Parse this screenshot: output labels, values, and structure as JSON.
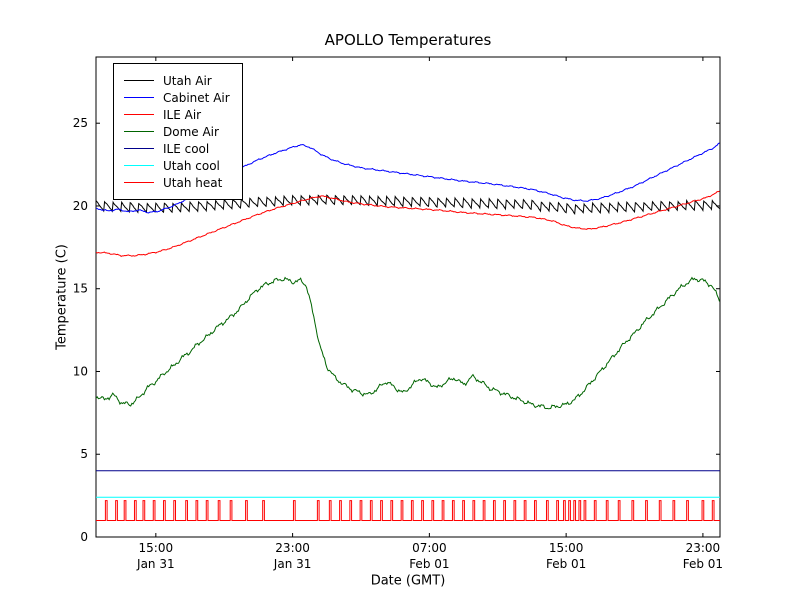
{
  "chart_data": {
    "type": "line",
    "title": "APOLLO Temperatures",
    "xlabel": "Date (GMT)",
    "ylabel": "Temperature (C)",
    "xlim": [
      11.5,
      48
    ],
    "ylim": [
      0,
      29
    ],
    "x_unit": "hours since Jan 31 00:00 GMT",
    "grid": false,
    "legend_position": "upper left",
    "y_ticks": [
      0,
      5,
      10,
      15,
      20,
      25
    ],
    "x_ticks": [
      {
        "x": 15,
        "label": "15:00",
        "sublabel": "Jan 31"
      },
      {
        "x": 23,
        "label": "23:00",
        "sublabel": "Jan 31"
      },
      {
        "x": 31,
        "label": "07:00",
        "sublabel": "Feb 01"
      },
      {
        "x": 39,
        "label": "15:00",
        "sublabel": "Feb 01"
      },
      {
        "x": 47,
        "label": "23:00",
        "sublabel": "Feb 01"
      }
    ],
    "series": [
      {
        "name": "Utah Air",
        "color": "#000000",
        "style": "sawtooth",
        "noise": 0.04,
        "sawtooth": {
          "period": 0.5,
          "amplitude": 0.6
        },
        "base_points": [
          [
            11.5,
            19.7
          ],
          [
            13.0,
            19.6
          ],
          [
            15.0,
            19.55
          ],
          [
            17.0,
            19.6
          ],
          [
            19.0,
            19.75
          ],
          [
            21.0,
            19.9
          ],
          [
            23.0,
            20.0
          ],
          [
            25.0,
            20.05
          ],
          [
            27.0,
            20.0
          ],
          [
            29.0,
            19.95
          ],
          [
            31.0,
            19.9
          ],
          [
            33.0,
            19.85
          ],
          [
            35.0,
            19.8
          ],
          [
            37.0,
            19.75
          ],
          [
            38.5,
            19.65
          ],
          [
            39.5,
            19.55
          ],
          [
            40.5,
            19.6
          ],
          [
            42.0,
            19.65
          ],
          [
            44.0,
            19.7
          ],
          [
            46.0,
            19.75
          ],
          [
            48.0,
            19.8
          ]
        ]
      },
      {
        "name": "Cabinet Air",
        "color": "#0000ff",
        "style": "line",
        "noise": 0.05,
        "points": [
          [
            11.5,
            19.85
          ],
          [
            12.2,
            19.7
          ],
          [
            12.8,
            19.8
          ],
          [
            13.4,
            19.65
          ],
          [
            14.0,
            19.75
          ],
          [
            14.6,
            19.6
          ],
          [
            15.2,
            19.7
          ],
          [
            16.0,
            20.0
          ],
          [
            17.0,
            20.5
          ],
          [
            18.0,
            21.1
          ],
          [
            19.0,
            21.7
          ],
          [
            20.0,
            22.3
          ],
          [
            21.0,
            22.8
          ],
          [
            22.0,
            23.2
          ],
          [
            23.0,
            23.55
          ],
          [
            23.5,
            23.7
          ],
          [
            24.0,
            23.55
          ],
          [
            24.7,
            23.1
          ],
          [
            25.3,
            22.8
          ],
          [
            26.0,
            22.55
          ],
          [
            27.0,
            22.3
          ],
          [
            28.5,
            22.1
          ],
          [
            30.0,
            21.9
          ],
          [
            31.5,
            21.7
          ],
          [
            33.0,
            21.5
          ],
          [
            34.5,
            21.35
          ],
          [
            36.0,
            21.15
          ],
          [
            37.0,
            21.0
          ],
          [
            38.0,
            20.75
          ],
          [
            38.8,
            20.5
          ],
          [
            39.5,
            20.35
          ],
          [
            40.2,
            20.3
          ],
          [
            41.0,
            20.45
          ],
          [
            42.0,
            20.8
          ],
          [
            43.0,
            21.2
          ],
          [
            44.0,
            21.7
          ],
          [
            45.0,
            22.2
          ],
          [
            46.0,
            22.7
          ],
          [
            47.0,
            23.2
          ],
          [
            47.6,
            23.5
          ],
          [
            48.0,
            23.8
          ]
        ]
      },
      {
        "name": "ILE Air",
        "color": "#ff0000",
        "style": "line",
        "noise": 0.05,
        "points": [
          [
            11.5,
            17.2
          ],
          [
            12.2,
            17.15
          ],
          [
            13.0,
            17.0
          ],
          [
            13.8,
            17.0
          ],
          [
            14.5,
            17.1
          ],
          [
            15.2,
            17.25
          ],
          [
            16.0,
            17.5
          ],
          [
            17.0,
            17.9
          ],
          [
            18.0,
            18.3
          ],
          [
            19.0,
            18.7
          ],
          [
            20.0,
            19.1
          ],
          [
            21.0,
            19.5
          ],
          [
            22.0,
            19.85
          ],
          [
            23.0,
            20.15
          ],
          [
            24.0,
            20.45
          ],
          [
            24.7,
            20.6
          ],
          [
            25.4,
            20.45
          ],
          [
            26.2,
            20.25
          ],
          [
            27.2,
            20.1
          ],
          [
            28.5,
            19.95
          ],
          [
            30.0,
            19.85
          ],
          [
            31.5,
            19.75
          ],
          [
            33.0,
            19.6
          ],
          [
            34.5,
            19.5
          ],
          [
            36.0,
            19.4
          ],
          [
            37.2,
            19.3
          ],
          [
            38.2,
            19.1
          ],
          [
            39.0,
            18.8
          ],
          [
            39.7,
            18.65
          ],
          [
            40.4,
            18.6
          ],
          [
            41.2,
            18.75
          ],
          [
            42.2,
            19.0
          ],
          [
            43.2,
            19.3
          ],
          [
            44.2,
            19.6
          ],
          [
            45.2,
            19.9
          ],
          [
            46.2,
            20.2
          ],
          [
            47.2,
            20.5
          ],
          [
            48.0,
            20.9
          ]
        ]
      },
      {
        "name": "Dome Air",
        "color": "#006400",
        "style": "line",
        "noise": 0.16,
        "points": [
          [
            11.5,
            8.5
          ],
          [
            12.0,
            8.3
          ],
          [
            12.5,
            8.6
          ],
          [
            13.0,
            8.1
          ],
          [
            13.5,
            8.0
          ],
          [
            14.0,
            8.4
          ],
          [
            14.5,
            9.0
          ],
          [
            15.0,
            9.4
          ],
          [
            15.5,
            9.9
          ],
          [
            16.0,
            10.3
          ],
          [
            16.5,
            10.8
          ],
          [
            17.0,
            11.2
          ],
          [
            17.5,
            11.7
          ],
          [
            18.0,
            12.1
          ],
          [
            18.5,
            12.6
          ],
          [
            19.0,
            13.0
          ],
          [
            19.5,
            13.4
          ],
          [
            20.0,
            13.9
          ],
          [
            20.5,
            14.5
          ],
          [
            21.0,
            15.0
          ],
          [
            21.5,
            15.3
          ],
          [
            22.0,
            15.5
          ],
          [
            22.5,
            15.6
          ],
          [
            23.0,
            15.4
          ],
          [
            23.5,
            15.5
          ],
          [
            23.8,
            15.2
          ],
          [
            24.2,
            13.5
          ],
          [
            24.6,
            11.5
          ],
          [
            25.0,
            10.3
          ],
          [
            25.5,
            9.6
          ],
          [
            26.0,
            9.2
          ],
          [
            26.5,
            8.9
          ],
          [
            27.0,
            8.7
          ],
          [
            27.5,
            8.6
          ],
          [
            28.0,
            9.0
          ],
          [
            28.5,
            9.4
          ],
          [
            29.0,
            9.0
          ],
          [
            29.5,
            8.7
          ],
          [
            30.0,
            9.2
          ],
          [
            30.5,
            9.6
          ],
          [
            31.0,
            9.3
          ],
          [
            31.5,
            9.0
          ],
          [
            32.0,
            9.4
          ],
          [
            32.5,
            9.6
          ],
          [
            33.0,
            9.2
          ],
          [
            33.5,
            9.7
          ],
          [
            34.0,
            9.4
          ],
          [
            34.5,
            9.0
          ],
          [
            35.0,
            8.8
          ],
          [
            35.5,
            8.6
          ],
          [
            36.0,
            8.4
          ],
          [
            36.5,
            8.2
          ],
          [
            37.0,
            8.0
          ],
          [
            37.5,
            7.9
          ],
          [
            38.0,
            7.8
          ],
          [
            38.5,
            7.9
          ],
          [
            39.0,
            8.0
          ],
          [
            39.5,
            8.3
          ],
          [
            40.0,
            8.8
          ],
          [
            40.5,
            9.4
          ],
          [
            41.0,
            10.0
          ],
          [
            41.5,
            10.6
          ],
          [
            42.0,
            11.2
          ],
          [
            42.5,
            11.8
          ],
          [
            43.0,
            12.3
          ],
          [
            43.5,
            12.9
          ],
          [
            44.0,
            13.4
          ],
          [
            44.5,
            13.9
          ],
          [
            45.0,
            14.4
          ],
          [
            45.5,
            14.9
          ],
          [
            46.0,
            15.3
          ],
          [
            46.5,
            15.6
          ],
          [
            47.0,
            15.5
          ],
          [
            47.5,
            15.2
          ],
          [
            48.0,
            14.3
          ]
        ]
      },
      {
        "name": "ILE cool",
        "color": "#00008b",
        "style": "flat",
        "value": 4.0
      },
      {
        "name": "Utah cool",
        "color": "#00ffff",
        "style": "flat",
        "value": 2.4
      },
      {
        "name": "Utah heat",
        "color": "#ff0000",
        "style": "spikes",
        "baseline": 1.0,
        "peak": 2.2,
        "half_width": 0.05,
        "positions": [
          12.1,
          12.7,
          13.2,
          13.8,
          14.3,
          14.9,
          15.5,
          16.1,
          16.8,
          17.4,
          18.0,
          18.7,
          19.4,
          20.3,
          21.3,
          23.1,
          24.5,
          25.2,
          25.8,
          26.4,
          27.0,
          27.6,
          28.2,
          28.8,
          29.4,
          30.0,
          30.6,
          31.2,
          31.8,
          32.4,
          33.0,
          33.6,
          34.2,
          34.8,
          35.4,
          36.0,
          36.6,
          37.2,
          37.9,
          38.5,
          38.9,
          39.2,
          39.5,
          39.8,
          40.1,
          40.7,
          41.4,
          42.1,
          42.9,
          43.7,
          44.5,
          45.3,
          46.1,
          47.0,
          47.6
        ]
      }
    ]
  }
}
